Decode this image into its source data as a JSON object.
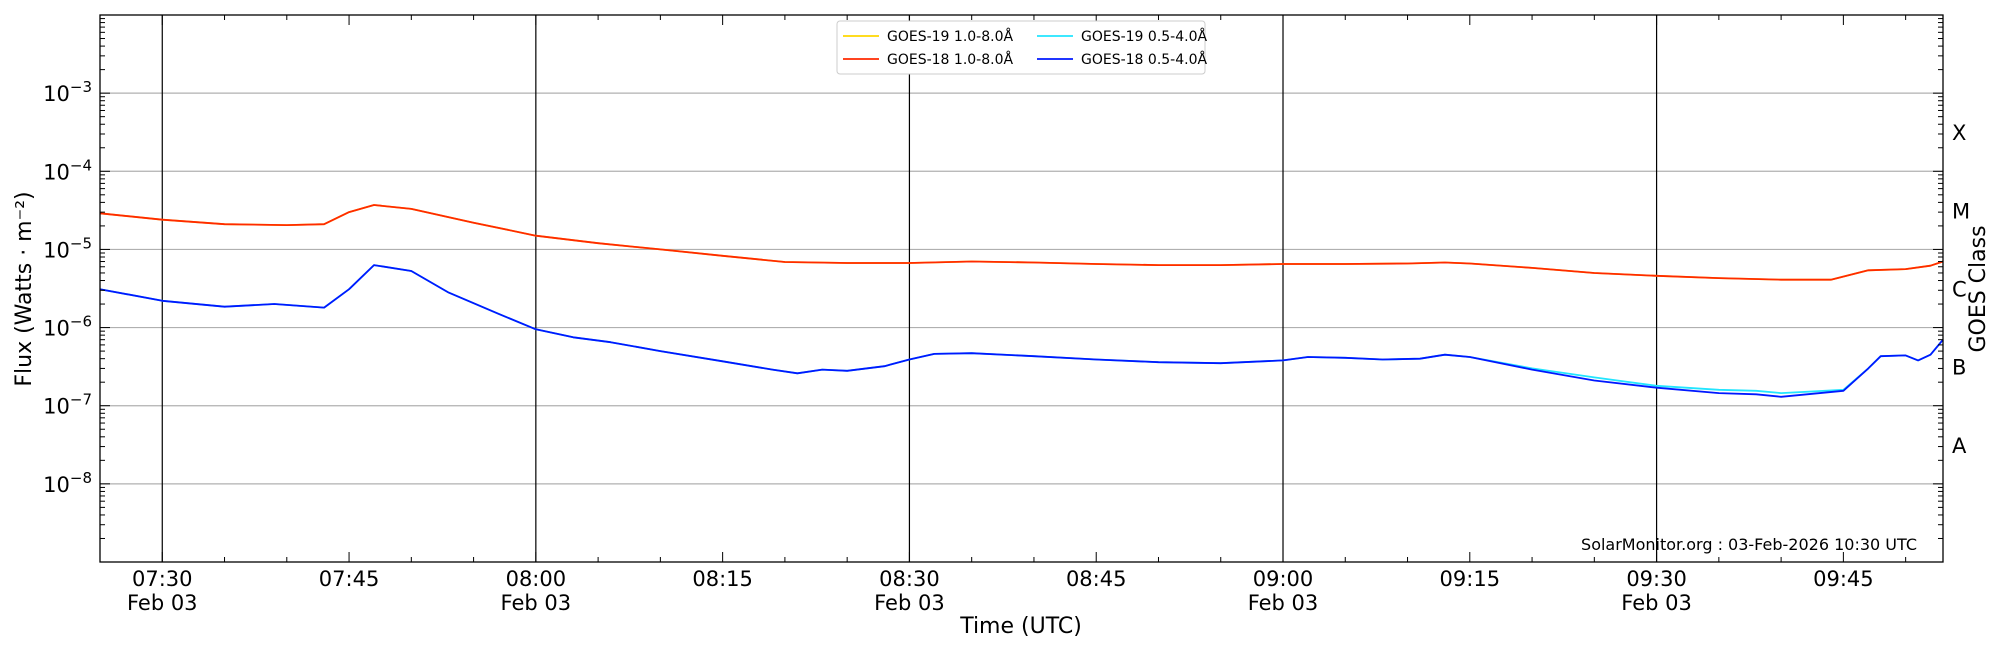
{
  "chart_data": {
    "type": "line",
    "xlabel": "Time (UTC)",
    "ylabel": "Flux (Watts · m⁻²)",
    "y2label": "GOES Class",
    "yscale": "log",
    "xlim": [
      "07:25",
      "09:53"
    ],
    "ylim": [
      1e-09,
      0.01
    ],
    "x_ticks": [
      {
        "time": "07:30",
        "date": "Feb 03"
      },
      {
        "time": "07:45",
        "date": ""
      },
      {
        "time": "08:00",
        "date": "Feb 03"
      },
      {
        "time": "08:15",
        "date": ""
      },
      {
        "time": "08:30",
        "date": "Feb 03"
      },
      {
        "time": "08:45",
        "date": ""
      },
      {
        "time": "09:00",
        "date": "Feb 03"
      },
      {
        "time": "09:15",
        "date": ""
      },
      {
        "time": "09:30",
        "date": "Feb 03"
      },
      {
        "time": "09:45",
        "date": ""
      }
    ],
    "y_ticks": [
      {
        "value": 1e-08,
        "base": "10",
        "exp": "−8"
      },
      {
        "value": 1e-07,
        "base": "10",
        "exp": "−7"
      },
      {
        "value": 1e-06,
        "base": "10",
        "exp": "−6"
      },
      {
        "value": 1e-05,
        "base": "10",
        "exp": "−5"
      },
      {
        "value": 0.0001,
        "base": "10",
        "exp": "−4"
      },
      {
        "value": 0.001,
        "base": "10",
        "exp": "−3"
      }
    ],
    "goes_classes": [
      {
        "label": "A",
        "value": 3.16e-08
      },
      {
        "label": "B",
        "value": 3.16e-07
      },
      {
        "label": "C",
        "value": 3.16e-06
      },
      {
        "label": "M",
        "value": 3.16e-05
      },
      {
        "label": "X",
        "value": 0.000316
      }
    ],
    "grid": "horizontal lines at decades; vertical lines at 30-minute marks",
    "legend_position": "top-center",
    "series": [
      {
        "name": "GOES-19 1.0-8.0Å",
        "color": "#ffd700",
        "x": [
          "07:25",
          "07:30",
          "07:35",
          "07:40",
          "07:43",
          "07:45",
          "07:47",
          "07:50",
          "07:55",
          "08:00",
          "08:05",
          "08:10",
          "08:15",
          "08:20",
          "08:25",
          "08:30",
          "08:35",
          "08:40",
          "08:45",
          "08:50",
          "08:55",
          "09:00",
          "09:05",
          "09:10",
          "09:13",
          "09:15",
          "09:20",
          "09:25",
          "09:30",
          "09:35",
          "09:40",
          "09:44",
          "09:47",
          "09:50",
          "09:52",
          "09:53"
        ],
        "y": [
          2.9e-05,
          2.4e-05,
          2.1e-05,
          2.05e-05,
          2.1e-05,
          3e-05,
          3.7e-05,
          3.3e-05,
          2.2e-05,
          1.5e-05,
          1.2e-05,
          1e-05,
          8.3e-06,
          6.9e-06,
          6.7e-06,
          6.7e-06,
          7e-06,
          6.8e-06,
          6.5e-06,
          6.3e-06,
          6.3e-06,
          6.5e-06,
          6.5e-06,
          6.6e-06,
          6.8e-06,
          6.6e-06,
          5.8e-06,
          5e-06,
          4.6e-06,
          4.3e-06,
          4.1e-06,
          4.1e-06,
          5.4e-06,
          5.6e-06,
          6.2e-06,
          7e-06
        ]
      },
      {
        "name": "GOES-18 1.0-8.0Å",
        "color": "#ff2a00",
        "x": [
          "07:25",
          "07:30",
          "07:35",
          "07:40",
          "07:43",
          "07:45",
          "07:47",
          "07:50",
          "07:55",
          "08:00",
          "08:05",
          "08:10",
          "08:15",
          "08:20",
          "08:25",
          "08:30",
          "08:35",
          "08:40",
          "08:45",
          "08:50",
          "08:55",
          "09:00",
          "09:05",
          "09:10",
          "09:13",
          "09:15",
          "09:20",
          "09:25",
          "09:30",
          "09:35",
          "09:40",
          "09:44",
          "09:47",
          "09:50",
          "09:52",
          "09:53"
        ],
        "y": [
          2.9e-05,
          2.4e-05,
          2.1e-05,
          2.05e-05,
          2.1e-05,
          3e-05,
          3.7e-05,
          3.3e-05,
          2.2e-05,
          1.5e-05,
          1.2e-05,
          1e-05,
          8.3e-06,
          6.9e-06,
          6.7e-06,
          6.7e-06,
          7e-06,
          6.8e-06,
          6.5e-06,
          6.3e-06,
          6.3e-06,
          6.5e-06,
          6.5e-06,
          6.6e-06,
          6.8e-06,
          6.6e-06,
          5.8e-06,
          5e-06,
          4.6e-06,
          4.3e-06,
          4.1e-06,
          4.1e-06,
          5.4e-06,
          5.6e-06,
          6.2e-06,
          7e-06
        ]
      },
      {
        "name": "GOES-19 0.5-4.0Å",
        "color": "#22e5ff",
        "x": [
          "07:25",
          "07:30",
          "07:35",
          "07:39",
          "07:43",
          "07:45",
          "07:47",
          "07:50",
          "07:53",
          "07:57",
          "08:00",
          "08:03",
          "08:06",
          "08:10",
          "08:15",
          "08:19",
          "08:21",
          "08:23",
          "08:25",
          "08:28",
          "08:30",
          "08:32",
          "08:35",
          "08:40",
          "08:45",
          "08:50",
          "08:55",
          "09:00",
          "09:02",
          "09:05",
          "09:08",
          "09:11",
          "09:13",
          "09:15",
          "09:20",
          "09:25",
          "09:30",
          "09:35",
          "09:38",
          "09:40",
          "09:45",
          "09:47",
          "09:48",
          "09:50",
          "09:51",
          "09:52",
          "09:53"
        ],
        "y": [
          3.1e-06,
          2.2e-06,
          1.85e-06,
          2e-06,
          1.8e-06,
          3.1e-06,
          6.3e-06,
          5.3e-06,
          2.8e-06,
          1.5e-06,
          9.5e-07,
          7.5e-07,
          6.5e-07,
          5e-07,
          3.7e-07,
          2.9e-07,
          2.6e-07,
          2.9e-07,
          2.8e-07,
          3.2e-07,
          3.9e-07,
          4.6e-07,
          4.7e-07,
          4.3e-07,
          3.9e-07,
          3.6e-07,
          3.5e-07,
          3.8e-07,
          4.2e-07,
          4.1e-07,
          3.9e-07,
          4e-07,
          4.5e-07,
          4.2e-07,
          3e-07,
          2.3e-07,
          1.8e-07,
          1.6e-07,
          1.55e-07,
          1.45e-07,
          1.6e-07,
          3e-07,
          4.3e-07,
          4.4e-07,
          3.8e-07,
          4.5e-07,
          7e-07
        ]
      },
      {
        "name": "GOES-18 0.5-4.0Å",
        "color": "#0018ff",
        "x": [
          "07:25",
          "07:30",
          "07:35",
          "07:39",
          "07:43",
          "07:45",
          "07:47",
          "07:50",
          "07:53",
          "07:57",
          "08:00",
          "08:03",
          "08:06",
          "08:10",
          "08:15",
          "08:19",
          "08:21",
          "08:23",
          "08:25",
          "08:28",
          "08:30",
          "08:32",
          "08:35",
          "08:40",
          "08:45",
          "08:50",
          "08:55",
          "09:00",
          "09:02",
          "09:05",
          "09:08",
          "09:11",
          "09:13",
          "09:15",
          "09:20",
          "09:25",
          "09:30",
          "09:35",
          "09:38",
          "09:40",
          "09:45",
          "09:47",
          "09:48",
          "09:50",
          "09:51",
          "09:52",
          "09:53"
        ],
        "y": [
          3.1e-06,
          2.2e-06,
          1.85e-06,
          2e-06,
          1.8e-06,
          3.1e-06,
          6.3e-06,
          5.3e-06,
          2.8e-06,
          1.5e-06,
          9.5e-07,
          7.5e-07,
          6.5e-07,
          5e-07,
          3.7e-07,
          2.9e-07,
          2.6e-07,
          2.9e-07,
          2.8e-07,
          3.2e-07,
          3.9e-07,
          4.6e-07,
          4.7e-07,
          4.3e-07,
          3.9e-07,
          3.6e-07,
          3.5e-07,
          3.8e-07,
          4.2e-07,
          4.1e-07,
          3.9e-07,
          4e-07,
          4.5e-07,
          4.2e-07,
          2.9e-07,
          2.1e-07,
          1.7e-07,
          1.45e-07,
          1.4e-07,
          1.3e-07,
          1.55e-07,
          3e-07,
          4.3e-07,
          4.4e-07,
          3.8e-07,
          4.5e-07,
          7e-07
        ]
      }
    ],
    "annotation": "SolarMonitor.org : 03-Feb-2026 10:30 UTC"
  }
}
